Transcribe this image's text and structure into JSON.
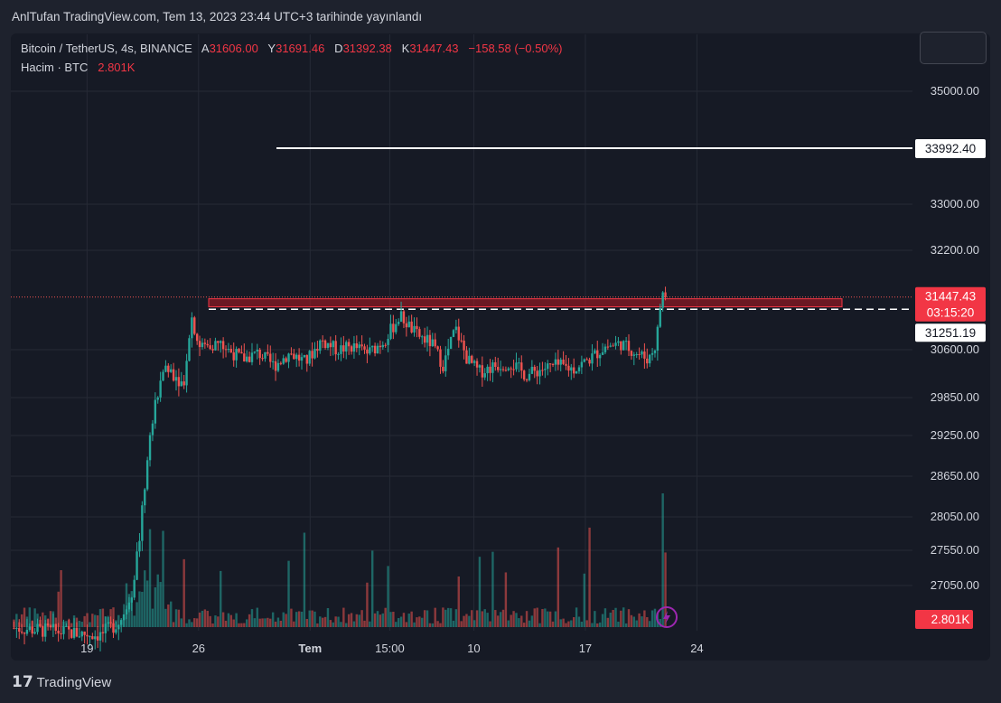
{
  "header": {
    "publish_line": "AnlTufan TradingView.com, Tem 13, 2023 23:44 UTC+3 tarihinde yayınlandı"
  },
  "legend": {
    "symbol": "Bitcoin / TetherUS, 4s, BINANCE",
    "open_label": "A",
    "open": "31606.00",
    "high_label": "Y",
    "high": "31691.46",
    "low_label": "D",
    "low": "31392.38",
    "close_label": "K",
    "close": "31447.43",
    "change": "−158.58 (−0.50%)",
    "volume_label": "Hacim · BTC",
    "volume": "2.801K"
  },
  "footer": {
    "brand": "TradingView",
    "logo_icon": "tradingview-logo-icon"
  },
  "colors": {
    "up": "#26a69a",
    "down": "#ef5350",
    "bg": "#161a25",
    "grid": "#262a35",
    "text": "#d1d4dc",
    "accent_red": "#f23645"
  },
  "chart_data": {
    "type": "candlestick",
    "symbol": "Bitcoin / TetherUS, 4s, BINANCE",
    "y_ticks": [
      "35000.00",
      "33000.00",
      "32200.00",
      "30600.00",
      "29850.00",
      "29250.00",
      "28650.00",
      "28050.00",
      "27550.00",
      "27050.00"
    ],
    "y_tick_values": [
      35000,
      33000,
      32200,
      30600,
      29850,
      29250,
      28650,
      28050,
      27550,
      27050
    ],
    "x_ticks": [
      "19",
      "26",
      "Tem",
      "15:00",
      "10",
      "17",
      "24"
    ],
    "x_tick_positions": [
      0.0775,
      0.191,
      0.3045,
      0.3855,
      0.471,
      0.5845,
      0.698
    ],
    "horizontal_line": {
      "label": "33992.40",
      "value": 33992.4,
      "style": "solid",
      "color": "#ffffff"
    },
    "dashed_line": {
      "label": "31251.19",
      "value": 31251.19,
      "style": "dashed",
      "color": "#ffffff"
    },
    "current_price": {
      "label": "31447.43",
      "countdown": "03:15:20",
      "value": 31447.43
    },
    "volume_label": "2.801K",
    "resistance_zone": {
      "from": 31290,
      "to": 31420,
      "color": "#f23645"
    },
    "series_keypoints": {
      "description_free": true,
      "segments": [
        {
          "t": 0.0,
          "p": 26450
        },
        {
          "t": 0.05,
          "p": 26400
        },
        {
          "t": 0.11,
          "p": 26350
        },
        {
          "t": 0.135,
          "p": 26550
        },
        {
          "t": 0.15,
          "p": 27000
        },
        {
          "t": 0.16,
          "p": 27800
        },
        {
          "t": 0.17,
          "p": 29000
        },
        {
          "t": 0.18,
          "p": 29800
        },
        {
          "t": 0.19,
          "p": 30350
        },
        {
          "t": 0.205,
          "p": 30200
        },
        {
          "t": 0.215,
          "p": 30050
        },
        {
          "t": 0.225,
          "p": 31150
        },
        {
          "t": 0.235,
          "p": 30650
        },
        {
          "t": 0.26,
          "p": 30700
        },
        {
          "t": 0.29,
          "p": 30450
        },
        {
          "t": 0.31,
          "p": 30550
        },
        {
          "t": 0.33,
          "p": 30350
        },
        {
          "t": 0.35,
          "p": 30550
        },
        {
          "t": 0.37,
          "p": 30400
        },
        {
          "t": 0.39,
          "p": 30750
        },
        {
          "t": 0.41,
          "p": 30600
        },
        {
          "t": 0.43,
          "p": 30650
        },
        {
          "t": 0.45,
          "p": 30550
        },
        {
          "t": 0.47,
          "p": 30750
        },
        {
          "t": 0.49,
          "p": 31150
        },
        {
          "t": 0.51,
          "p": 30850
        },
        {
          "t": 0.53,
          "p": 30700
        },
        {
          "t": 0.545,
          "p": 30350
        },
        {
          "t": 0.56,
          "p": 30950
        },
        {
          "t": 0.575,
          "p": 30450
        },
        {
          "t": 0.59,
          "p": 30250
        },
        {
          "t": 0.61,
          "p": 30350
        },
        {
          "t": 0.63,
          "p": 30400
        },
        {
          "t": 0.65,
          "p": 30200
        },
        {
          "t": 0.67,
          "p": 30300
        },
        {
          "t": 0.69,
          "p": 30350
        },
        {
          "t": 0.71,
          "p": 30300
        },
        {
          "t": 0.73,
          "p": 30450
        },
        {
          "t": 0.75,
          "p": 30650
        },
        {
          "t": 0.77,
          "p": 30700
        },
        {
          "t": 0.79,
          "p": 30550
        },
        {
          "t": 0.805,
          "p": 30450
        },
        {
          "t": 0.815,
          "p": 30700
        },
        {
          "t": 0.82,
          "p": 31300
        },
        {
          "t": 0.825,
          "p": 31606
        },
        {
          "t": 0.83,
          "p": 31447
        }
      ]
    }
  }
}
